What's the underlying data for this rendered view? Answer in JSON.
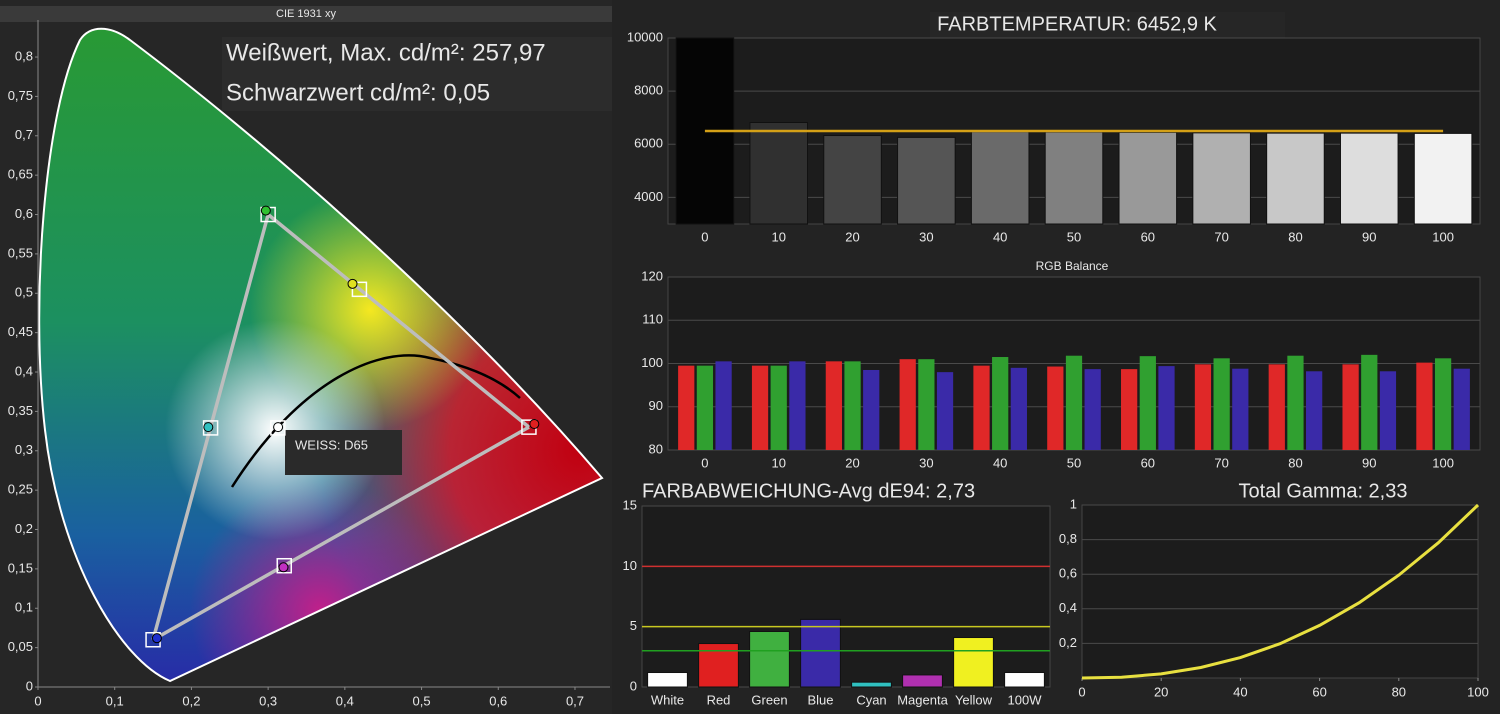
{
  "chart_data": [
    {
      "type": "cie",
      "title": "CIE 1931 xy",
      "annotations": [
        "Weißwert, Max. cd/m²: 257,97",
        "Schwarzwert cd/m²: 0,05",
        "WEISS: D65"
      ],
      "xlim": [
        0,
        0.745
      ],
      "ylim": [
        0,
        0.845
      ],
      "xticks": [
        0,
        {
          "value": 0.1,
          "label": "0,1"
        },
        {
          "value": 0.2,
          "label": "0,2"
        },
        {
          "value": 0.3,
          "label": "0,3"
        },
        {
          "value": 0.4,
          "label": "0,4"
        },
        {
          "value": 0.5,
          "label": "0,5"
        },
        {
          "value": 0.6,
          "label": "0,6"
        },
        {
          "value": 0.7,
          "label": "0,7"
        }
      ],
      "yticks": [
        0,
        {
          "value": 0.05,
          "label": "0,05"
        },
        {
          "value": 0.1,
          "label": "0,1"
        },
        {
          "value": 0.15,
          "label": "0,15"
        },
        {
          "value": 0.2,
          "label": "0,2"
        },
        {
          "value": 0.25,
          "label": "0,25"
        },
        {
          "value": 0.3,
          "label": "0,3"
        },
        {
          "value": 0.35,
          "label": "0,35"
        },
        {
          "value": 0.4,
          "label": "0,4"
        },
        {
          "value": 0.45,
          "label": "0,45"
        },
        {
          "value": 0.5,
          "label": "0,5"
        },
        {
          "value": 0.55,
          "label": "0,55"
        },
        {
          "value": 0.6,
          "label": "0,6"
        },
        {
          "value": 0.65,
          "label": "0,65"
        },
        {
          "value": 0.7,
          "label": "0,7"
        },
        {
          "value": 0.75,
          "label": "0,75"
        },
        {
          "value": 0.8,
          "label": "0,8"
        }
      ],
      "grid": false,
      "series": [
        {
          "marker": "square",
          "color": "#ffffff",
          "x": [
            0.64,
            0.3,
            0.15,
            0.3127,
            0.225,
            0.321,
            0.419
          ],
          "y": [
            0.33,
            0.6,
            0.06,
            0.329,
            0.329,
            0.154,
            0.505
          ]
        },
        {
          "marker": "circle",
          "colors": [
            "#e02020",
            "#30c030",
            "#2030d0",
            "#ffffff",
            "#30c0c0",
            "#c030c0",
            "#e0e020"
          ],
          "x": [
            0.647,
            0.297,
            0.155,
            0.313,
            0.222,
            0.32,
            0.41
          ],
          "y": [
            0.334,
            0.605,
            0.062,
            0.33,
            0.33,
            0.152,
            0.512
          ]
        }
      ]
    },
    {
      "type": "bar",
      "title": "FARBTEMPERATUR: 6452,9 K",
      "categories": [
        "0",
        "10",
        "20",
        "30",
        "40",
        "50",
        "60",
        "70",
        "80",
        "90",
        "100"
      ],
      "values": [
        10000,
        6820,
        6330,
        6260,
        6470,
        6460,
        6450,
        6430,
        6420,
        6420,
        6410
      ],
      "colors": [
        "#050505",
        "#303030",
        "#444444",
        "#555555",
        "#6a6a6a",
        "#808080",
        "#999999",
        "#b0b0b0",
        "#c8c8c8",
        "#dddddd",
        "#f2f2f2"
      ],
      "target": 6500,
      "target_color": "#d4a017",
      "ylim": [
        3000,
        10000
      ],
      "yticks": [
        4000,
        6000,
        8000,
        10000
      ],
      "grid": true
    },
    {
      "type": "grouped_bar",
      "title": "RGB Balance",
      "categories": [
        "0",
        "10",
        "20",
        "30",
        "40",
        "50",
        "60",
        "70",
        "80",
        "90",
        "100"
      ],
      "series": [
        {
          "color": "#e02828",
          "values": [
            99.5,
            99.5,
            100.5,
            101,
            99.5,
            99.3,
            98.7,
            99.8,
            99.8,
            99.8,
            100.2
          ]
        },
        {
          "color": "#30a030",
          "values": [
            99.5,
            99.5,
            100.5,
            101,
            101.5,
            101.8,
            101.7,
            101.2,
            101.8,
            102,
            101.2
          ]
        },
        {
          "color": "#3a2aa8",
          "values": [
            100.5,
            100.5,
            98.5,
            98,
            99,
            98.7,
            99.4,
            98.8,
            98.2,
            98.2,
            98.8
          ]
        }
      ],
      "ylim": [
        80,
        120
      ],
      "yticks": [
        80,
        90,
        100,
        110,
        120
      ],
      "grid": true
    },
    {
      "type": "bar",
      "title": "FARBABWEICHUNG-Avg dE94: 2,73",
      "categories": [
        "White",
        "Red",
        "Green",
        "Blue",
        "Cyan",
        "Magenta",
        "Yellow",
        "100W"
      ],
      "values": [
        1.2,
        3.6,
        4.6,
        5.6,
        0.4,
        1.0,
        4.1,
        1.2
      ],
      "colors": [
        "#ffffff",
        "#e02020",
        "#40b040",
        "#3a2aa8",
        "#30c0c0",
        "#b030b0",
        "#f0f020",
        "#ffffff"
      ],
      "reference_lines": [
        {
          "value": 10,
          "color": "#d03030"
        },
        {
          "value": 5,
          "color": "#c8c820"
        },
        {
          "value": 3,
          "color": "#20a020"
        }
      ],
      "ylim": [
        0,
        15
      ],
      "yticks": [
        0,
        5,
        10,
        15
      ],
      "grid": true
    },
    {
      "type": "line",
      "title": "Total Gamma: 2,33",
      "x": [
        0,
        10,
        20,
        30,
        40,
        50,
        60,
        70,
        80,
        90,
        100
      ],
      "values": [
        0,
        0.0047,
        0.0235,
        0.0605,
        0.118,
        0.198,
        0.304,
        0.435,
        0.595,
        0.782,
        1
      ],
      "color": "#e8e040",
      "xlim": [
        0,
        100
      ],
      "ylim": [
        0,
        1
      ],
      "xticks": [
        0,
        20,
        40,
        60,
        80,
        100
      ],
      "yticks": [
        {
          "value": 0.2,
          "label": "0,2"
        },
        {
          "value": 0.4,
          "label": "0,4"
        },
        {
          "value": 0.6,
          "label": "0,6"
        },
        {
          "value": 0.8,
          "label": "0,8"
        },
        1
      ],
      "grid": true
    }
  ]
}
